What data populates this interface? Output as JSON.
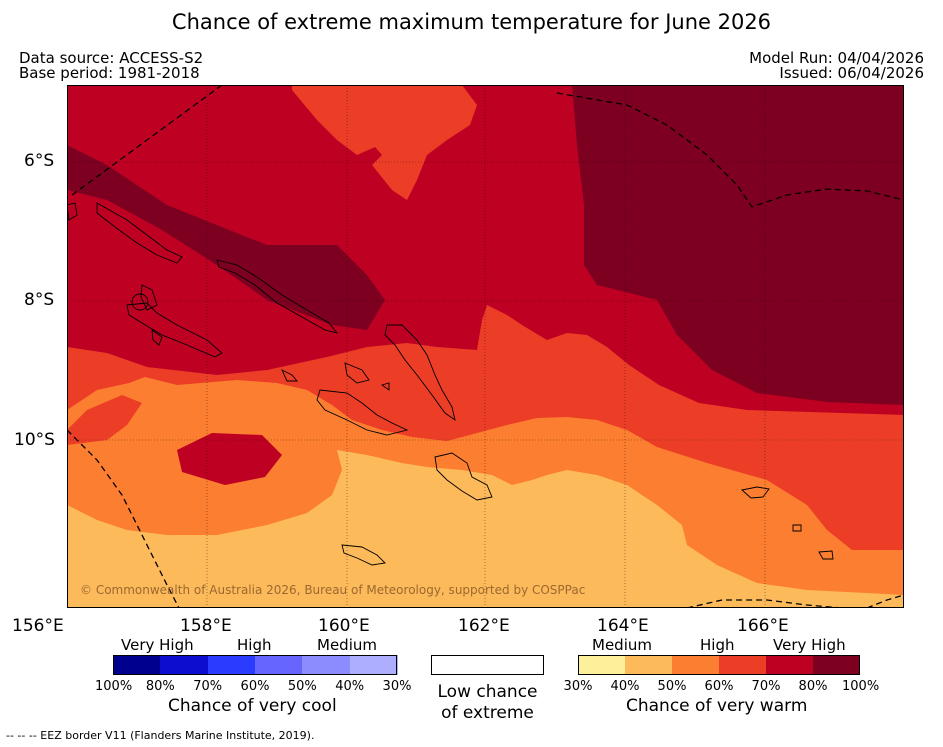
{
  "title": "Chance of extreme maximum temperature for June 2026",
  "header": {
    "data_source": "Data source: ACCESS-S2",
    "base_period": "Base period: 1981-2018",
    "model_run": "Model Run: 04/04/2026",
    "issued": "Issued: 06/04/2026"
  },
  "map": {
    "copyright": "© Commonwealth of Australia 2026, Bureau of Meteorology, supported by COSPPac",
    "lat_ticks": [
      "6°S",
      "8°S",
      "10°S"
    ],
    "lon_ticks": [
      "156°E",
      "158°E",
      "160°E",
      "162°E",
      "164°E",
      "166°E"
    ]
  },
  "legend": {
    "cool": {
      "categories": [
        "Very High",
        "High",
        "Medium"
      ],
      "percents": [
        "100%",
        "80%",
        "70%",
        "60%",
        "50%",
        "40%",
        "30%"
      ],
      "colors": [
        "#00008f",
        "#0d0dd0",
        "#2b3bff",
        "#6666ff",
        "#8c8cff",
        "#aeaeff"
      ],
      "title": "Chance of very cool"
    },
    "neutral": {
      "line1": "Low chance",
      "line2": "of extreme",
      "color": "#ffffff"
    },
    "warm": {
      "categories": [
        "Medium",
        "High",
        "Very High"
      ],
      "percents": [
        "30%",
        "40%",
        "50%",
        "60%",
        "70%",
        "80%",
        "100%"
      ],
      "colors": [
        "#fdf09a",
        "#fcba5a",
        "#fc7e30",
        "#ec3d27",
        "#be0123",
        "#7e0021"
      ],
      "title": "Chance of very warm"
    }
  },
  "footer": "--  --  -- EEZ border V11 (Flanders Marine Institute, 2019)."
}
